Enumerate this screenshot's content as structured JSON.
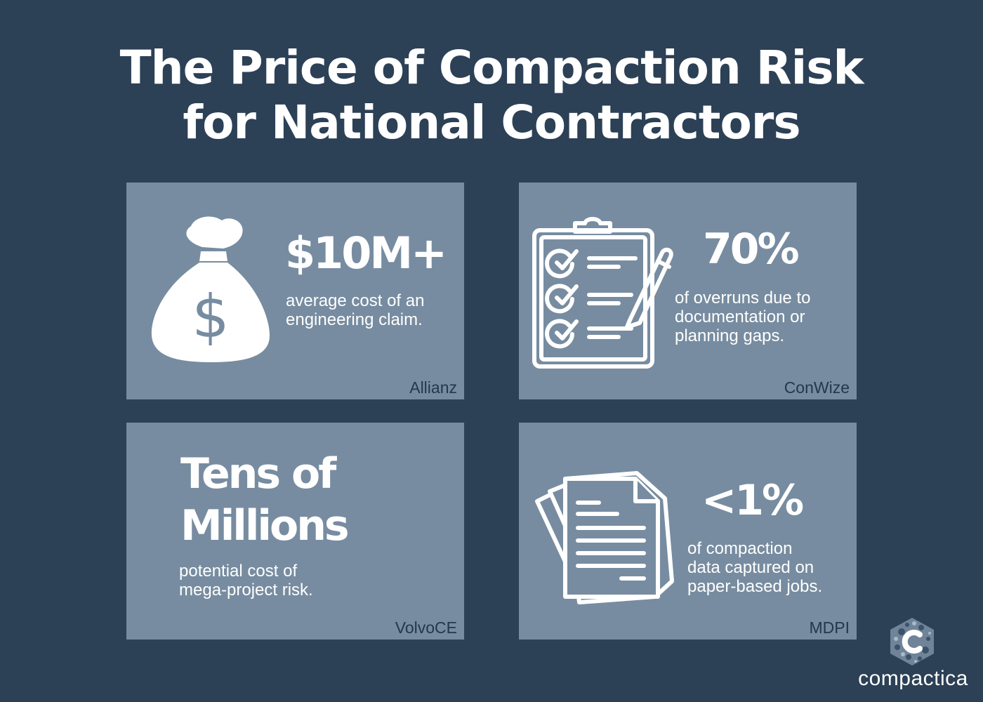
{
  "title": {
    "line1": "The Price of Compaction Risk",
    "line2": "for National Contractors"
  },
  "cards": [
    {
      "stat": "$10M+",
      "description": [
        "average cost of an",
        "engineering claim."
      ],
      "source": "Allianz",
      "icon": "money-bag-icon"
    },
    {
      "stat": "70%",
      "description": [
        "of overruns due to",
        "documentation or",
        "planning gaps."
      ],
      "source": "ConWize",
      "icon": "clipboard-checklist-icon"
    },
    {
      "stat": [
        "Tens of",
        "Millions"
      ],
      "description": [
        "potential cost of",
        "mega-project risk."
      ],
      "source": "VolvoCE"
    },
    {
      "stat": "<1%",
      "description": [
        "of compaction",
        "data captured on",
        "paper-based jobs."
      ],
      "source": "MDPI",
      "icon": "paper-documents-icon"
    }
  ],
  "logo": {
    "text": "compactica",
    "icon": "compactica-logo-icon"
  },
  "colors": {
    "background": "#2c4056",
    "card": "#778ca0",
    "text": "#ffffff",
    "source": "#24384d"
  }
}
